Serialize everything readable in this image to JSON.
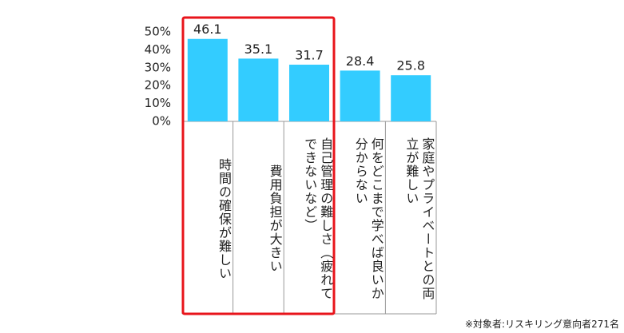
{
  "chart_data": {
    "type": "bar",
    "categories": [
      "時間の確保が難しい",
      "費用負担が大きい",
      "自己管理の難しさ（疲れて\nできないなど）",
      "何をどこまで学べば良いか\n分からない",
      "家庭やプライベートとの両\n立が難しい"
    ],
    "values": [
      46.1,
      35.1,
      31.7,
      28.4,
      25.8
    ],
    "color": "#33ccff",
    "ylim": [
      0,
      50
    ],
    "yticks": [
      {
        "value": 0,
        "label": "0%"
      },
      {
        "value": 10,
        "label": "10%"
      },
      {
        "value": 20,
        "label": "20%"
      },
      {
        "value": 30,
        "label": "30%"
      },
      {
        "value": 40,
        "label": "40%"
      },
      {
        "value": 50,
        "label": "50%"
      }
    ],
    "highlight_color": "#e8141b",
    "note": "※対象者:リスキリング意向者271名"
  }
}
